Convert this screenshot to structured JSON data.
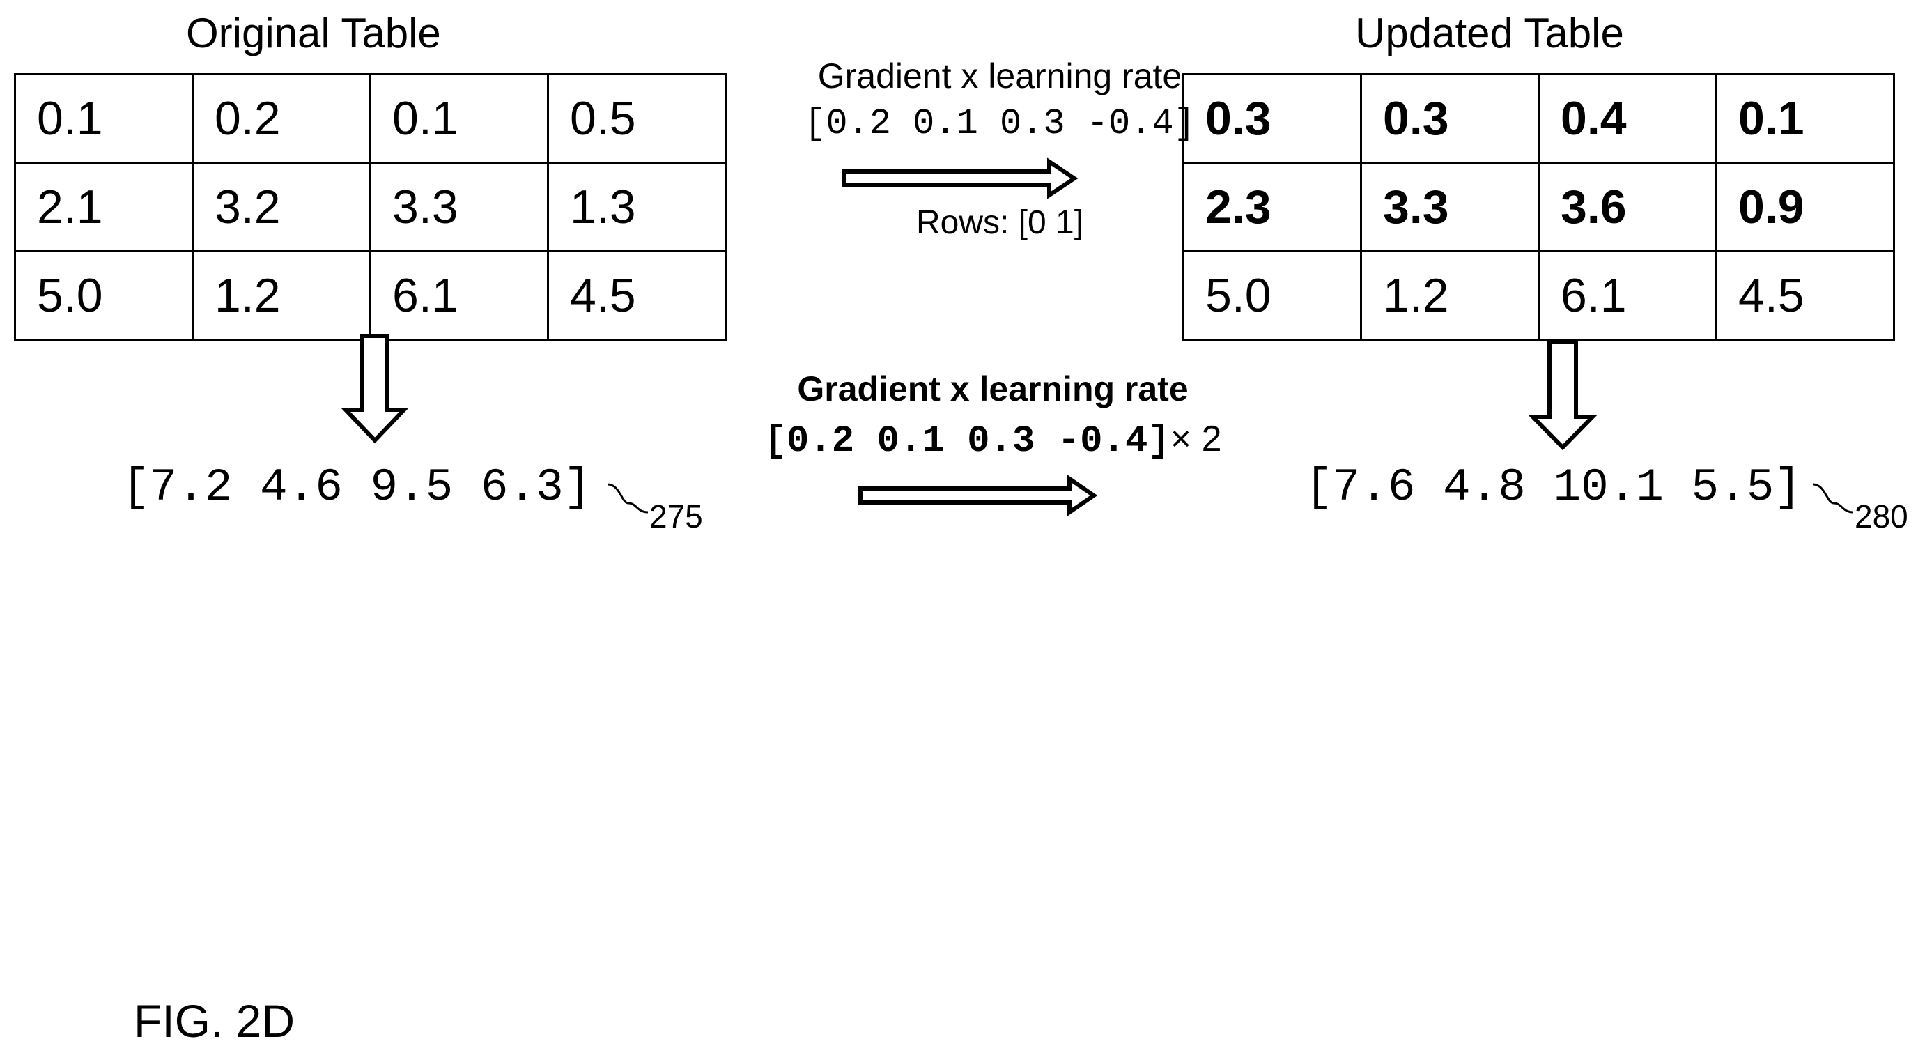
{
  "original": {
    "title": "Original Table",
    "rows": [
      [
        "0.1",
        "0.2",
        "0.1",
        "0.5"
      ],
      [
        "2.1",
        "3.2",
        "3.3",
        "1.3"
      ],
      [
        "5.0",
        "1.2",
        "6.1",
        "4.5"
      ]
    ],
    "vector": "[7.2 4.6 9.5 6.3]",
    "ref": "275"
  },
  "updated": {
    "title": "Updated Table",
    "rows": [
      [
        "0.3",
        "0.3",
        "0.4",
        "0.1"
      ],
      [
        "2.3",
        "3.3",
        "3.6",
        "0.9"
      ],
      [
        "5.0",
        "1.2",
        "6.1",
        "4.5"
      ]
    ],
    "bold_rows": [
      0,
      1
    ],
    "vector": "[7.6 4.8 10.1 5.5]",
    "ref": "280"
  },
  "top_transform": {
    "label": "Gradient x learning rate",
    "vector": "[0.2 0.1 0.3 -0.4]",
    "rows": "Rows: [0 1]"
  },
  "bottom_transform": {
    "label": "Gradient x learning rate",
    "vector": "[0.2 0.1 0.3 -0.4]",
    "multiplier": "× 2"
  },
  "figure_label": "FIG. 2D"
}
